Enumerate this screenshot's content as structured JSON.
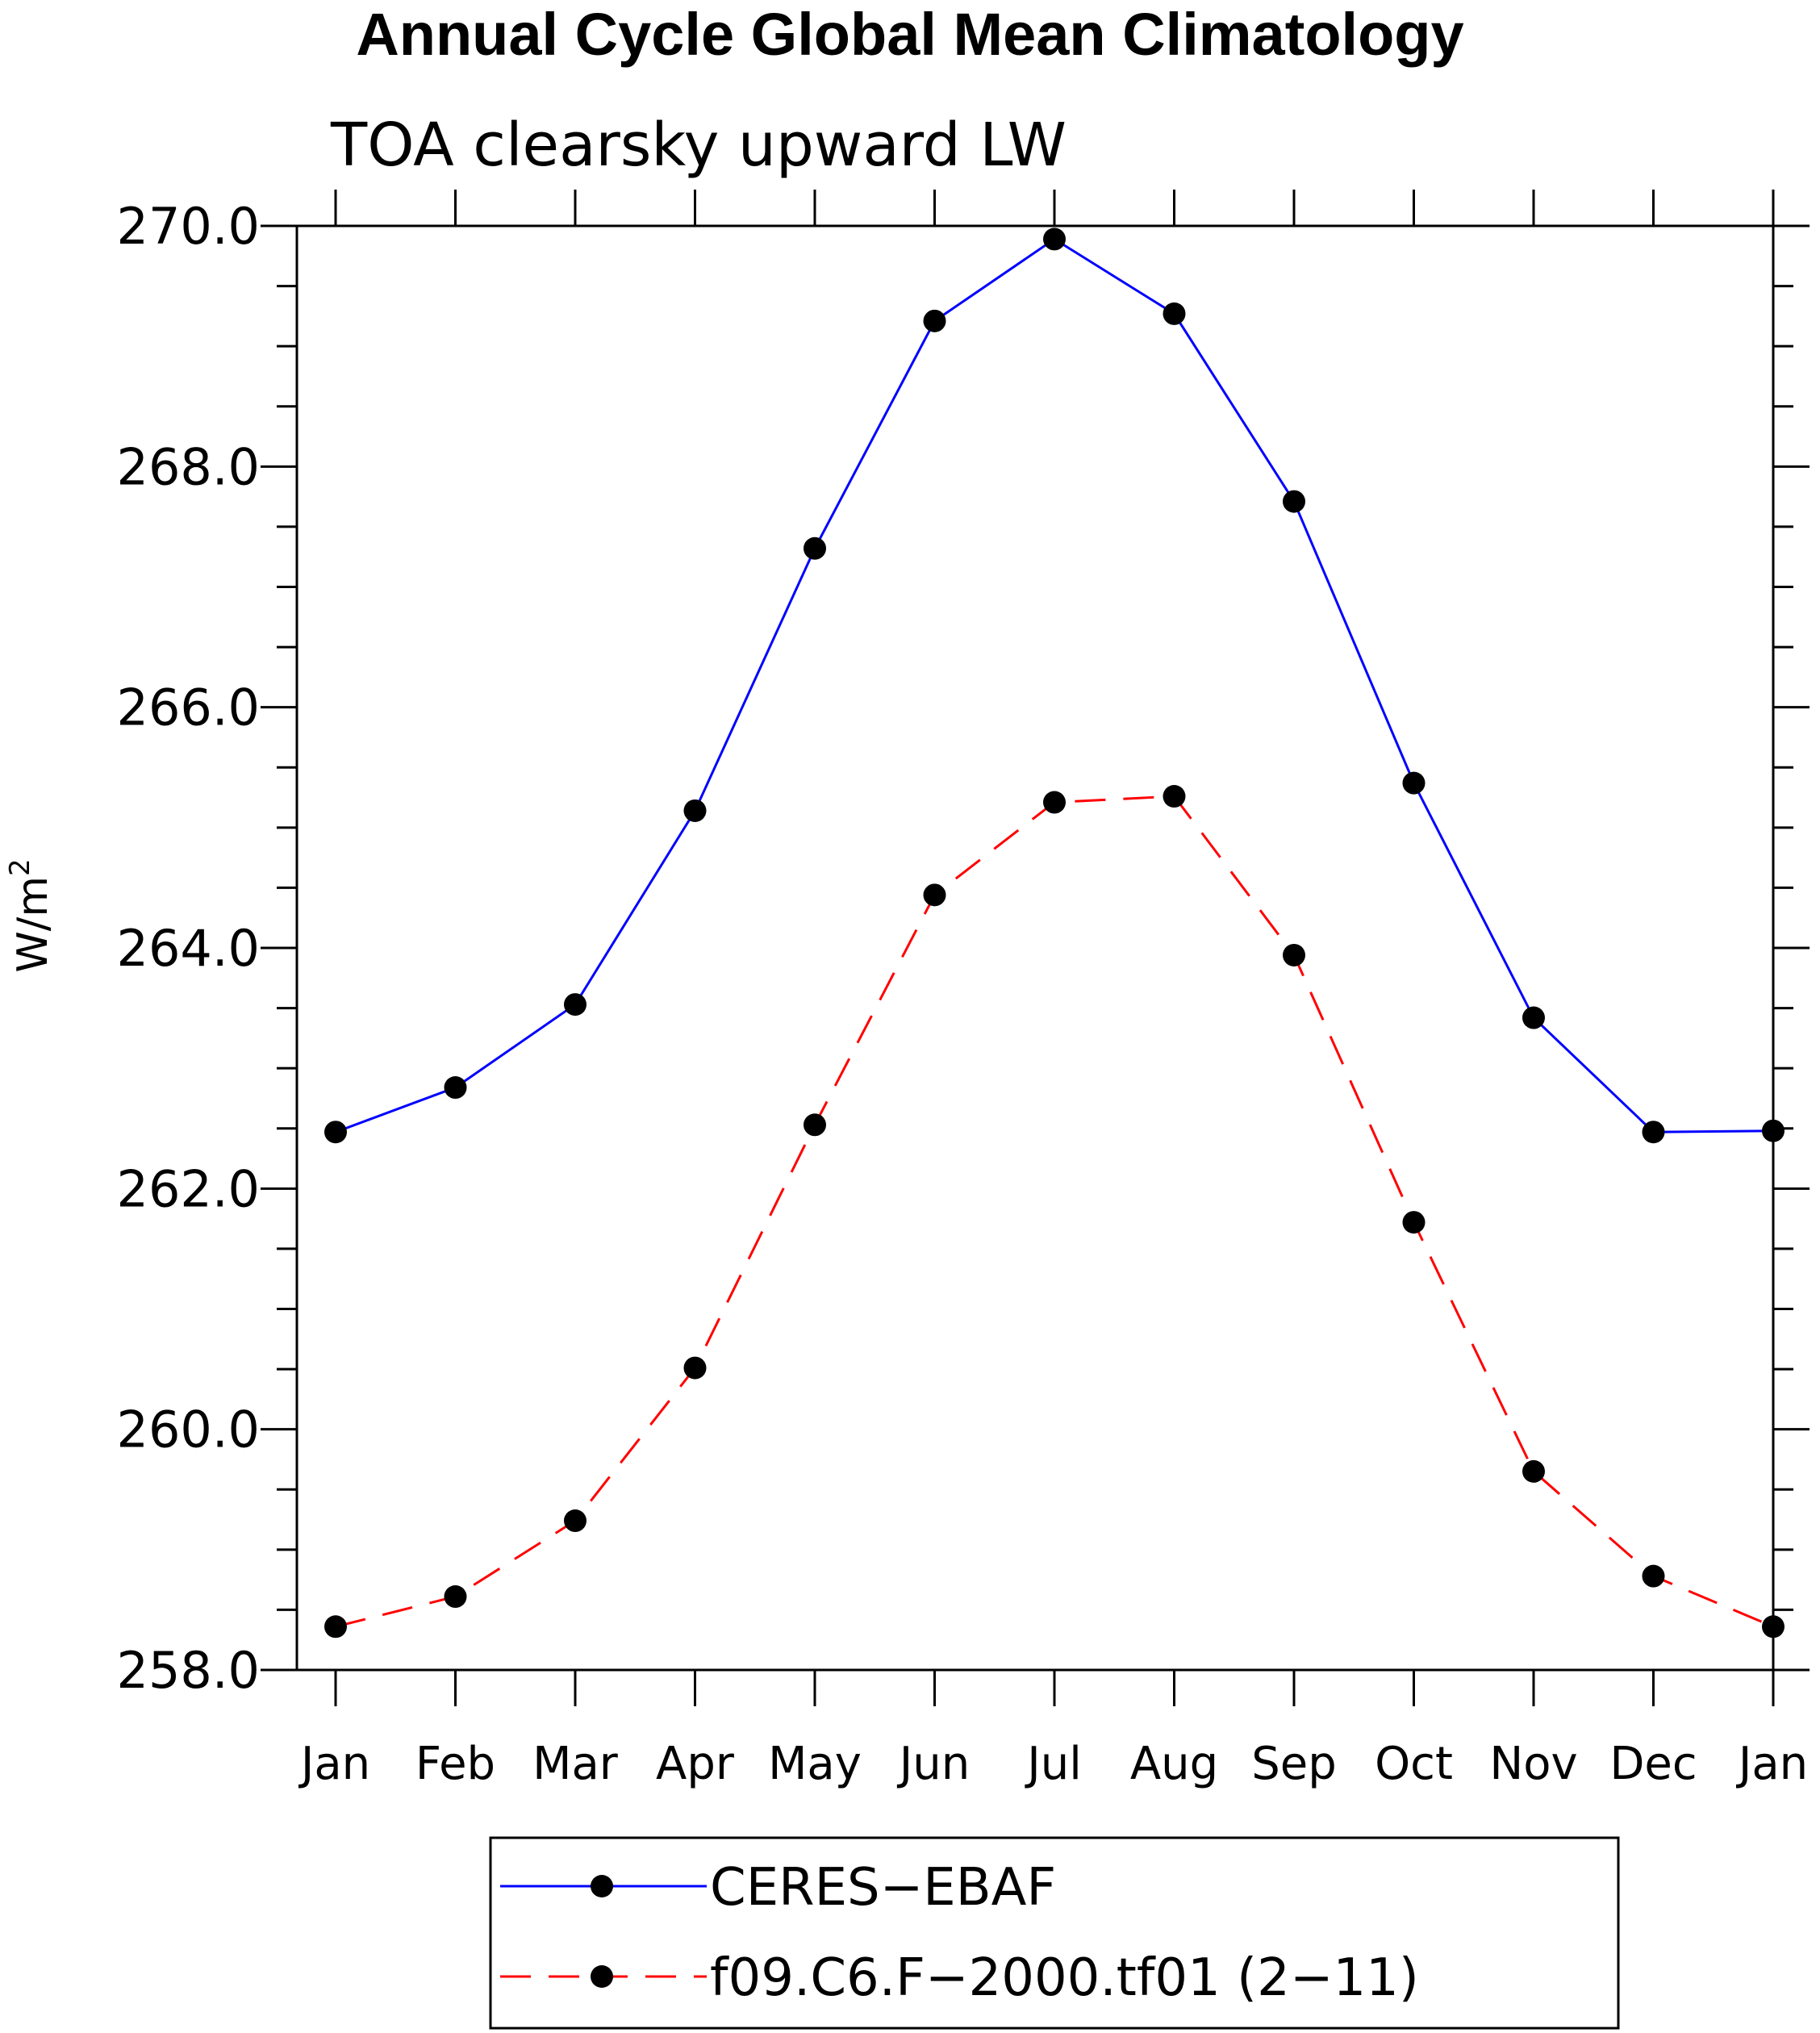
{
  "chart_data": {
    "type": "line",
    "title": "Annual Cycle Global Mean Climatology",
    "subtitle": "TOA clearsky upward LW",
    "ylabel": "W/m",
    "ylabel_sup": "2",
    "xlabel": "",
    "categories": [
      "Jan",
      "Feb",
      "Mar",
      "Apr",
      "May",
      "Jun",
      "Jul",
      "Aug",
      "Sep",
      "Oct",
      "Nov",
      "Dec",
      "Jan"
    ],
    "ylim": [
      258.0,
      270.0
    ],
    "yticks": [
      "258.0",
      "260.0",
      "262.0",
      "264.0",
      "266.0",
      "268.0",
      "270.0"
    ],
    "grid": false,
    "legend_position": "bottom",
    "series": [
      {
        "name": "CERES−EBAF",
        "color": "#0000ff",
        "dash": "solid",
        "values": [
          262.47,
          262.84,
          263.53,
          265.14,
          267.32,
          269.21,
          269.89,
          269.27,
          267.71,
          265.37,
          263.42,
          262.47,
          262.48
        ]
      },
      {
        "name": "f09.C6.F−2000.tf01 (2−11)",
        "color": "#ff0000",
        "dash": "dashed",
        "values": [
          258.36,
          258.61,
          259.24,
          260.51,
          262.53,
          264.44,
          265.21,
          265.26,
          263.94,
          261.72,
          259.65,
          258.78,
          258.36
        ]
      }
    ],
    "marker_color": "#000000"
  }
}
